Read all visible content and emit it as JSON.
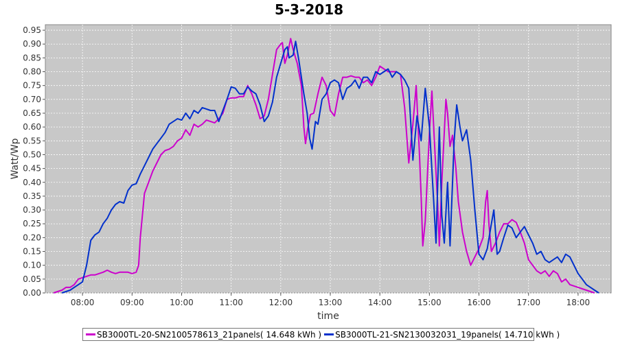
{
  "colors": {
    "plot_bg": "#c8c8c8",
    "grid": "#ffffff",
    "series_0": "#cc00cc",
    "series_1": "#0030cc"
  },
  "chart_data": {
    "type": "line",
    "title": "5-3-2018",
    "xlabel": "time",
    "ylabel": "Watt/Wp",
    "xlim": [
      "07:15",
      "18:40"
    ],
    "ylim": [
      0,
      0.97
    ],
    "x_ticks": [
      "08:00",
      "09:00",
      "10:00",
      "11:00",
      "12:00",
      "13:00",
      "14:00",
      "15:00",
      "16:00",
      "17:00",
      "18:00"
    ],
    "y_ticks": [
      "0.00",
      "0.05",
      "0.10",
      "0.15",
      "0.20",
      "0.25",
      "0.30",
      "0.35",
      "0.40",
      "0.45",
      "0.50",
      "0.55",
      "0.60",
      "0.65",
      "0.70",
      "0.75",
      "0.80",
      "0.85",
      "0.90",
      "0.95"
    ],
    "grid": true,
    "legend_position": "bottom",
    "series": [
      {
        "name": "SB3000TL-20-SN2100578613_21panels( 14.648 kWh )",
        "color": "#cc00cc",
        "points": [
          [
            "07:25",
            0.0
          ],
          [
            "07:30",
            0.005
          ],
          [
            "07:35",
            0.01
          ],
          [
            "07:40",
            0.02
          ],
          [
            "07:45",
            0.02
          ],
          [
            "07:50",
            0.03
          ],
          [
            "07:55",
            0.05
          ],
          [
            "08:00",
            0.055
          ],
          [
            "08:05",
            0.06
          ],
          [
            "08:10",
            0.065
          ],
          [
            "08:15",
            0.065
          ],
          [
            "08:20",
            0.07
          ],
          [
            "08:25",
            0.075
          ],
          [
            "08:30",
            0.082
          ],
          [
            "08:35",
            0.075
          ],
          [
            "08:40",
            0.07
          ],
          [
            "08:45",
            0.075
          ],
          [
            "08:50",
            0.075
          ],
          [
            "08:55",
            0.075
          ],
          [
            "09:00",
            0.07
          ],
          [
            "09:05",
            0.075
          ],
          [
            "09:08",
            0.1
          ],
          [
            "09:10",
            0.2
          ],
          [
            "09:15",
            0.36
          ],
          [
            "09:20",
            0.4
          ],
          [
            "09:25",
            0.44
          ],
          [
            "09:30",
            0.47
          ],
          [
            "09:35",
            0.5
          ],
          [
            "09:40",
            0.515
          ],
          [
            "09:45",
            0.52
          ],
          [
            "09:50",
            0.53
          ],
          [
            "09:55",
            0.55
          ],
          [
            "10:00",
            0.56
          ],
          [
            "10:05",
            0.59
          ],
          [
            "10:10",
            0.57
          ],
          [
            "10:15",
            0.61
          ],
          [
            "10:20",
            0.6
          ],
          [
            "10:25",
            0.61
          ],
          [
            "10:30",
            0.625
          ],
          [
            "10:35",
            0.62
          ],
          [
            "10:40",
            0.615
          ],
          [
            "10:45",
            0.63
          ],
          [
            "10:50",
            0.65
          ],
          [
            "10:55",
            0.7
          ],
          [
            "11:00",
            0.705
          ],
          [
            "11:05",
            0.705
          ],
          [
            "11:10",
            0.71
          ],
          [
            "11:15",
            0.71
          ],
          [
            "11:20",
            0.75
          ],
          [
            "11:25",
            0.72
          ],
          [
            "11:30",
            0.68
          ],
          [
            "11:35",
            0.63
          ],
          [
            "11:40",
            0.64
          ],
          [
            "11:45",
            0.7
          ],
          [
            "11:50",
            0.79
          ],
          [
            "11:55",
            0.88
          ],
          [
            "12:00",
            0.9
          ],
          [
            "12:02",
            0.905
          ],
          [
            "12:05",
            0.83
          ],
          [
            "12:08",
            0.86
          ],
          [
            "12:12",
            0.92
          ],
          [
            "12:15",
            0.88
          ],
          [
            "12:20",
            0.83
          ],
          [
            "12:25",
            0.75
          ],
          [
            "12:28",
            0.6
          ],
          [
            "12:30",
            0.54
          ],
          [
            "12:33",
            0.6
          ],
          [
            "12:36",
            0.645
          ],
          [
            "12:40",
            0.65
          ],
          [
            "12:45",
            0.72
          ],
          [
            "12:50",
            0.78
          ],
          [
            "12:55",
            0.75
          ],
          [
            "13:00",
            0.66
          ],
          [
            "13:05",
            0.64
          ],
          [
            "13:10",
            0.72
          ],
          [
            "13:15",
            0.78
          ],
          [
            "13:20",
            0.78
          ],
          [
            "13:25",
            0.785
          ],
          [
            "13:30",
            0.78
          ],
          [
            "13:35",
            0.78
          ],
          [
            "13:40",
            0.76
          ],
          [
            "13:45",
            0.77
          ],
          [
            "13:50",
            0.75
          ],
          [
            "13:55",
            0.78
          ],
          [
            "14:00",
            0.82
          ],
          [
            "14:05",
            0.81
          ],
          [
            "14:10",
            0.8
          ],
          [
            "14:15",
            0.8
          ],
          [
            "14:20",
            0.8
          ],
          [
            "14:25",
            0.79
          ],
          [
            "14:30",
            0.67
          ],
          [
            "14:35",
            0.47
          ],
          [
            "14:40",
            0.61
          ],
          [
            "14:44",
            0.75
          ],
          [
            "14:48",
            0.5
          ],
          [
            "14:50",
            0.35
          ],
          [
            "14:52",
            0.17
          ],
          [
            "14:55",
            0.26
          ],
          [
            "15:00",
            0.58
          ],
          [
            "15:03",
            0.73
          ],
          [
            "15:06",
            0.55
          ],
          [
            "15:10",
            0.32
          ],
          [
            "15:12",
            0.17
          ],
          [
            "15:15",
            0.4
          ],
          [
            "15:20",
            0.7
          ],
          [
            "15:22",
            0.65
          ],
          [
            "15:25",
            0.53
          ],
          [
            "15:28",
            0.57
          ],
          [
            "15:32",
            0.45
          ],
          [
            "15:35",
            0.33
          ],
          [
            "15:40",
            0.22
          ],
          [
            "15:45",
            0.15
          ],
          [
            "15:50",
            0.1
          ],
          [
            "15:55",
            0.13
          ],
          [
            "16:00",
            0.16
          ],
          [
            "16:05",
            0.2
          ],
          [
            "16:08",
            0.33
          ],
          [
            "16:10",
            0.37
          ],
          [
            "16:12",
            0.25
          ],
          [
            "16:15",
            0.15
          ],
          [
            "16:20",
            0.18
          ],
          [
            "16:25",
            0.22
          ],
          [
            "16:30",
            0.25
          ],
          [
            "16:35",
            0.25
          ],
          [
            "16:40",
            0.265
          ],
          [
            "16:45",
            0.255
          ],
          [
            "16:50",
            0.22
          ],
          [
            "16:55",
            0.18
          ],
          [
            "17:00",
            0.12
          ],
          [
            "17:05",
            0.1
          ],
          [
            "17:10",
            0.08
          ],
          [
            "17:15",
            0.07
          ],
          [
            "17:20",
            0.08
          ],
          [
            "17:25",
            0.06
          ],
          [
            "17:30",
            0.08
          ],
          [
            "17:35",
            0.07
          ],
          [
            "17:40",
            0.04
          ],
          [
            "17:45",
            0.05
          ],
          [
            "17:50",
            0.03
          ],
          [
            "17:55",
            0.025
          ],
          [
            "18:00",
            0.02
          ],
          [
            "18:05",
            0.015
          ],
          [
            "18:10",
            0.01
          ],
          [
            "18:15",
            0.005
          ],
          [
            "18:20",
            0.0
          ]
        ]
      },
      {
        "name": "SB3000TL-21-SN2130032031_19panels( 14.710 kWh )",
        "color": "#0030cc",
        "points": [
          [
            "07:35",
            0.0
          ],
          [
            "07:40",
            0.005
          ],
          [
            "07:45",
            0.01
          ],
          [
            "07:50",
            0.02
          ],
          [
            "07:55",
            0.03
          ],
          [
            "08:00",
            0.04
          ],
          [
            "08:05",
            0.1
          ],
          [
            "08:10",
            0.19
          ],
          [
            "08:15",
            0.21
          ],
          [
            "08:20",
            0.22
          ],
          [
            "08:25",
            0.25
          ],
          [
            "08:30",
            0.27
          ],
          [
            "08:35",
            0.3
          ],
          [
            "08:40",
            0.32
          ],
          [
            "08:45",
            0.33
          ],
          [
            "08:50",
            0.325
          ],
          [
            "08:55",
            0.37
          ],
          [
            "09:00",
            0.39
          ],
          [
            "09:05",
            0.395
          ],
          [
            "09:10",
            0.43
          ],
          [
            "09:15",
            0.46
          ],
          [
            "09:20",
            0.49
          ],
          [
            "09:25",
            0.52
          ],
          [
            "09:30",
            0.54
          ],
          [
            "09:35",
            0.56
          ],
          [
            "09:40",
            0.58
          ],
          [
            "09:45",
            0.61
          ],
          [
            "09:50",
            0.62
          ],
          [
            "09:55",
            0.63
          ],
          [
            "10:00",
            0.625
          ],
          [
            "10:05",
            0.65
          ],
          [
            "10:10",
            0.63
          ],
          [
            "10:15",
            0.66
          ],
          [
            "10:20",
            0.65
          ],
          [
            "10:25",
            0.67
          ],
          [
            "10:30",
            0.665
          ],
          [
            "10:35",
            0.66
          ],
          [
            "10:40",
            0.66
          ],
          [
            "10:45",
            0.62
          ],
          [
            "10:50",
            0.66
          ],
          [
            "10:55",
            0.7
          ],
          [
            "11:00",
            0.745
          ],
          [
            "11:05",
            0.74
          ],
          [
            "11:10",
            0.72
          ],
          [
            "11:15",
            0.72
          ],
          [
            "11:20",
            0.745
          ],
          [
            "11:25",
            0.73
          ],
          [
            "11:30",
            0.72
          ],
          [
            "11:35",
            0.68
          ],
          [
            "11:40",
            0.62
          ],
          [
            "11:45",
            0.64
          ],
          [
            "11:50",
            0.69
          ],
          [
            "11:55",
            0.78
          ],
          [
            "12:00",
            0.83
          ],
          [
            "12:05",
            0.88
          ],
          [
            "12:08",
            0.89
          ],
          [
            "12:10",
            0.85
          ],
          [
            "12:15",
            0.86
          ],
          [
            "12:18",
            0.91
          ],
          [
            "12:22",
            0.84
          ],
          [
            "12:25",
            0.78
          ],
          [
            "12:28",
            0.72
          ],
          [
            "12:32",
            0.65
          ],
          [
            "12:35",
            0.56
          ],
          [
            "12:38",
            0.52
          ],
          [
            "12:42",
            0.62
          ],
          [
            "12:45",
            0.61
          ],
          [
            "12:50",
            0.7
          ],
          [
            "12:55",
            0.72
          ],
          [
            "13:00",
            0.76
          ],
          [
            "13:05",
            0.77
          ],
          [
            "13:10",
            0.76
          ],
          [
            "13:15",
            0.7
          ],
          [
            "13:20",
            0.74
          ],
          [
            "13:25",
            0.75
          ],
          [
            "13:30",
            0.77
          ],
          [
            "13:35",
            0.74
          ],
          [
            "13:40",
            0.78
          ],
          [
            "13:45",
            0.78
          ],
          [
            "13:50",
            0.76
          ],
          [
            "13:55",
            0.8
          ],
          [
            "14:00",
            0.79
          ],
          [
            "14:05",
            0.8
          ],
          [
            "14:10",
            0.81
          ],
          [
            "14:15",
            0.78
          ],
          [
            "14:20",
            0.8
          ],
          [
            "14:25",
            0.79
          ],
          [
            "14:30",
            0.77
          ],
          [
            "14:35",
            0.74
          ],
          [
            "14:40",
            0.48
          ],
          [
            "14:45",
            0.64
          ],
          [
            "14:50",
            0.55
          ],
          [
            "14:55",
            0.74
          ],
          [
            "15:00",
            0.6
          ],
          [
            "15:05",
            0.34
          ],
          [
            "15:08",
            0.18
          ],
          [
            "15:12",
            0.6
          ],
          [
            "15:15",
            0.28
          ],
          [
            "15:18",
            0.18
          ],
          [
            "15:22",
            0.4
          ],
          [
            "15:25",
            0.17
          ],
          [
            "15:30",
            0.55
          ],
          [
            "15:33",
            0.68
          ],
          [
            "15:37",
            0.6
          ],
          [
            "15:40",
            0.55
          ],
          [
            "15:45",
            0.59
          ],
          [
            "15:50",
            0.48
          ],
          [
            "15:55",
            0.3
          ],
          [
            "16:00",
            0.14
          ],
          [
            "16:05",
            0.12
          ],
          [
            "16:10",
            0.16
          ],
          [
            "16:15",
            0.25
          ],
          [
            "16:18",
            0.3
          ],
          [
            "16:22",
            0.14
          ],
          [
            "16:25",
            0.15
          ],
          [
            "16:30",
            0.2
          ],
          [
            "16:35",
            0.245
          ],
          [
            "16:40",
            0.235
          ],
          [
            "16:45",
            0.2
          ],
          [
            "16:50",
            0.22
          ],
          [
            "16:55",
            0.24
          ],
          [
            "17:00",
            0.21
          ],
          [
            "17:05",
            0.18
          ],
          [
            "17:10",
            0.14
          ],
          [
            "17:15",
            0.15
          ],
          [
            "17:20",
            0.12
          ],
          [
            "17:25",
            0.11
          ],
          [
            "17:30",
            0.12
          ],
          [
            "17:35",
            0.13
          ],
          [
            "17:40",
            0.11
          ],
          [
            "17:45",
            0.14
          ],
          [
            "17:50",
            0.13
          ],
          [
            "17:55",
            0.1
          ],
          [
            "18:00",
            0.07
          ],
          [
            "18:05",
            0.05
          ],
          [
            "18:10",
            0.03
          ],
          [
            "18:15",
            0.02
          ],
          [
            "18:20",
            0.01
          ],
          [
            "18:25",
            0.0
          ]
        ]
      }
    ]
  },
  "legend": {
    "items": [
      "SB3000TL-20-SN2100578613_21panels( 14.648 kWh )",
      "SB3000TL-21-SN2130032031_19panels( 14.710 kWh )"
    ]
  }
}
